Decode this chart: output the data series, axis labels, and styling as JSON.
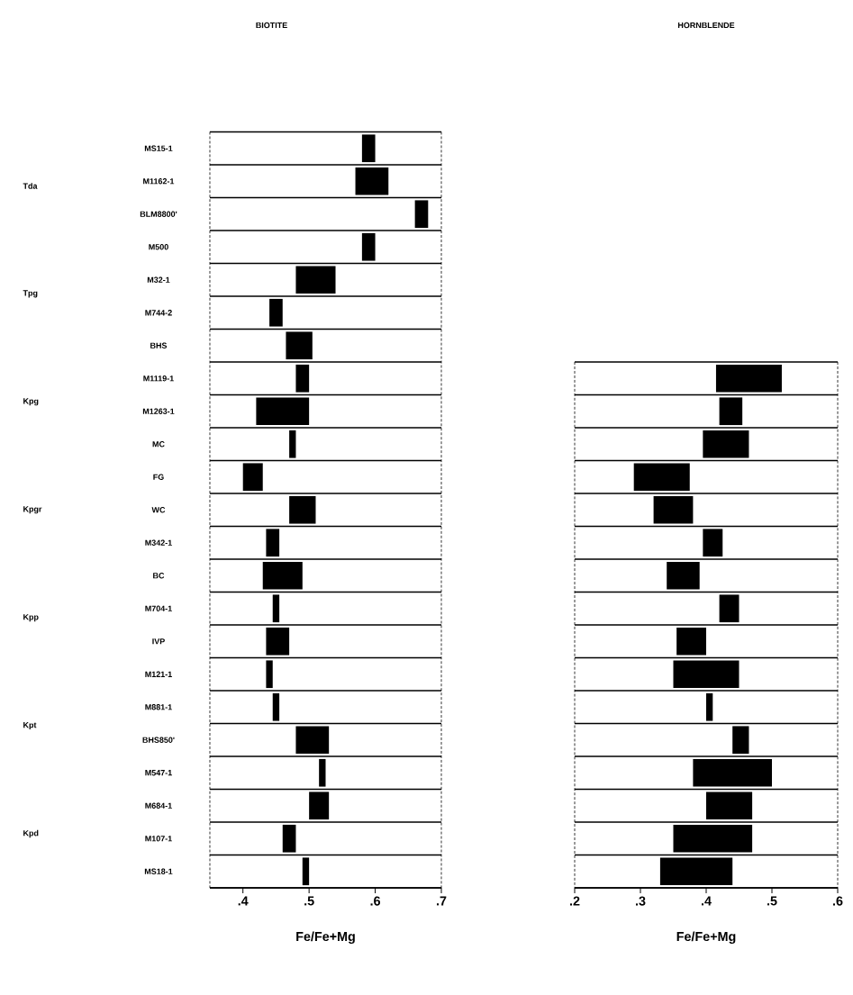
{
  "chart_data": [
    {
      "type": "bar",
      "orientation": "horizontal",
      "title": "BIOTITE",
      "xlabel": "Fe/Fe+Mg",
      "color": "#000000",
      "categories": [
        "MS15-1",
        "M1162-1",
        "BLM8800'",
        "M500",
        "M32-1",
        "M744-2",
        "BHS",
        "M1119-1",
        "M1263-1",
        "MC",
        "FG",
        "WC",
        "M342-1",
        "BC",
        "M704-1",
        "IVP",
        "M121-1",
        "M881-1",
        "BHS850'",
        "M547-1",
        "M684-1",
        "M107-1",
        "MS18-1"
      ],
      "base": [
        0.58,
        0.57,
        0.66,
        0.58,
        0.48,
        0.44,
        0.465,
        0.48,
        0.42,
        0.47,
        0.4,
        0.47,
        0.435,
        0.43,
        0.445,
        0.435,
        0.435,
        0.445,
        0.48,
        0.515,
        0.5,
        0.46,
        0.49
      ],
      "values": [
        0.02,
        0.05,
        0.02,
        0.02,
        0.06,
        0.02,
        0.04,
        0.02,
        0.08,
        0.01,
        0.03,
        0.04,
        0.02,
        0.06,
        0.01,
        0.035,
        0.01,
        0.01,
        0.05,
        0.01,
        0.03,
        0.02,
        0.01
      ],
      "annotations": [
        "Tda",
        "Tpg",
        "Kpg",
        "Kpgr",
        "Kpp",
        "Kpt",
        "Kpd"
      ],
      "xlim": [
        0.35,
        0.7
      ],
      "xticks": [
        {
          "value": 0.4,
          "label": ".4"
        },
        {
          "value": 0.5,
          "label": ".5"
        },
        {
          "value": 0.6,
          "label": ".6"
        },
        {
          "value": 0.7,
          "label": ".7"
        }
      ]
    },
    {
      "type": "bar",
      "orientation": "horizontal",
      "title": "HORNBLENDE",
      "xlabel": "Fe/Fe+Mg",
      "color": "#000000",
      "tick_labels": "x",
      "categories": [
        null,
        null,
        null,
        null,
        null,
        null,
        null,
        null,
        null,
        null,
        null,
        null,
        null,
        null,
        null,
        null
      ],
      "base": [
        0.415,
        0.42,
        0.395,
        0.29,
        0.32,
        0.395,
        0.34,
        0.42,
        0.355,
        0.35,
        0.4,
        0.44,
        0.38,
        0.4,
        0.35,
        0.33
      ],
      "values": [
        0.1,
        0.035,
        0.07,
        0.085,
        0.06,
        0.03,
        0.05,
        0.03,
        0.045,
        0.1,
        0.01,
        0.025,
        0.12,
        0.07,
        0.12,
        0.11
      ],
      "xlim": [
        0.2,
        0.6
      ],
      "xticks": [
        {
          "value": 0.2,
          "label": ".2"
        },
        {
          "value": 0.3,
          "label": ".3"
        },
        {
          "value": 0.4,
          "label": ".4"
        },
        {
          "value": 0.5,
          "label": ".5"
        },
        {
          "value": 0.6,
          "label": ".6"
        }
      ]
    }
  ]
}
